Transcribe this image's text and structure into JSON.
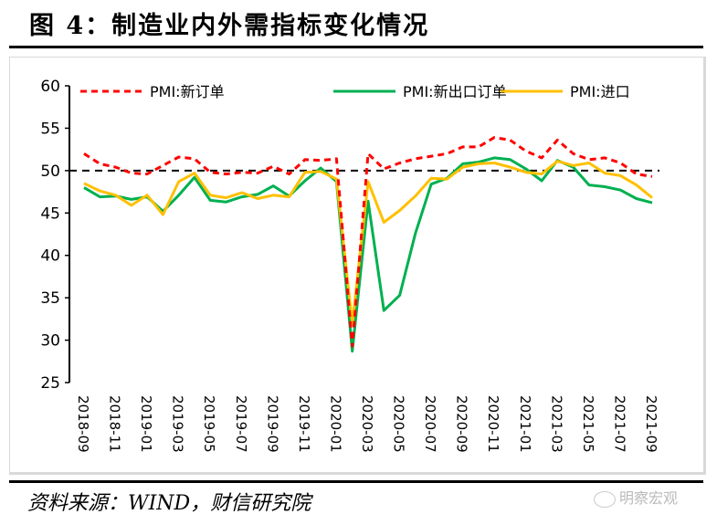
{
  "title": "图 4：制造业内外需指标变化情况",
  "source": "资料来源：WIND，财信研究院",
  "watermark": "明察宏观",
  "chart_data": {
    "type": "line",
    "title": "制造业内外需指标变化情况",
    "xlabel": "",
    "ylabel": "",
    "ylim": [
      25,
      60
    ],
    "yticks": [
      "60",
      "55",
      "50",
      "45",
      "40",
      "35",
      "30",
      "25"
    ],
    "ytick_values": [
      60,
      55,
      50,
      45,
      40,
      35,
      30,
      25
    ],
    "reference_line": 50,
    "legend_position": "top",
    "x": [
      "2018-09",
      "2018-10",
      "2018-11",
      "2018-12",
      "2019-01",
      "2019-02",
      "2019-03",
      "2019-04",
      "2019-05",
      "2019-06",
      "2019-07",
      "2019-08",
      "2019-09",
      "2019-10",
      "2019-11",
      "2019-12",
      "2020-01",
      "2020-02",
      "2020-03",
      "2020-04",
      "2020-05",
      "2020-06",
      "2020-07",
      "2020-08",
      "2020-09",
      "2020-10",
      "2020-11",
      "2020-12",
      "2021-01",
      "2021-02",
      "2021-03",
      "2021-04",
      "2021-05",
      "2021-06",
      "2021-07",
      "2021-08",
      "2021-09"
    ],
    "xtick_labels": [
      "2018-09",
      "2018-11",
      "2019-01",
      "2019-03",
      "2019-05",
      "2019-07",
      "2019-09",
      "2019-11",
      "2020-01",
      "2020-03",
      "2020-05",
      "2020-07",
      "2020-09",
      "2020-11",
      "2021-01",
      "2021-03",
      "2021-05",
      "2021-07",
      "2021-09"
    ],
    "series": [
      {
        "name": "PMI:新订单",
        "color": "#ff0000",
        "style": "dashed",
        "values": [
          52.0,
          50.8,
          50.4,
          49.7,
          49.6,
          50.6,
          51.6,
          51.4,
          49.8,
          49.6,
          49.8,
          49.7,
          50.5,
          49.6,
          51.3,
          51.2,
          51.4,
          29.3,
          52.0,
          50.2,
          50.9,
          51.4,
          51.7,
          52.0,
          52.8,
          52.8,
          53.9,
          53.6,
          52.3,
          51.5,
          53.6,
          52.0,
          51.3,
          51.5,
          50.9,
          49.6,
          49.3
        ]
      },
      {
        "name": "PMI:新出口订单",
        "color": "#00b050",
        "style": "solid",
        "values": [
          48.0,
          46.9,
          47.0,
          46.6,
          46.9,
          45.2,
          47.1,
          49.2,
          46.5,
          46.3,
          46.9,
          47.2,
          48.2,
          47.0,
          48.8,
          50.3,
          48.7,
          28.7,
          46.4,
          33.5,
          35.3,
          42.6,
          48.4,
          49.1,
          50.8,
          51.0,
          51.5,
          51.3,
          50.2,
          48.8,
          51.2,
          50.4,
          48.3,
          48.1,
          47.7,
          46.7,
          46.2
        ]
      },
      {
        "name": "PMI:进口",
        "color": "#ffc000",
        "style": "solid",
        "values": [
          48.5,
          47.6,
          47.1,
          45.9,
          47.1,
          44.8,
          48.7,
          49.7,
          47.1,
          46.8,
          47.4,
          46.7,
          47.1,
          46.9,
          49.8,
          49.9,
          49.0,
          31.9,
          48.7,
          43.9,
          45.3,
          47.0,
          49.1,
          49.0,
          50.4,
          50.8,
          50.9,
          50.4,
          49.8,
          49.6,
          51.1,
          50.6,
          50.9,
          49.7,
          49.4,
          48.3,
          46.8
        ]
      }
    ]
  }
}
